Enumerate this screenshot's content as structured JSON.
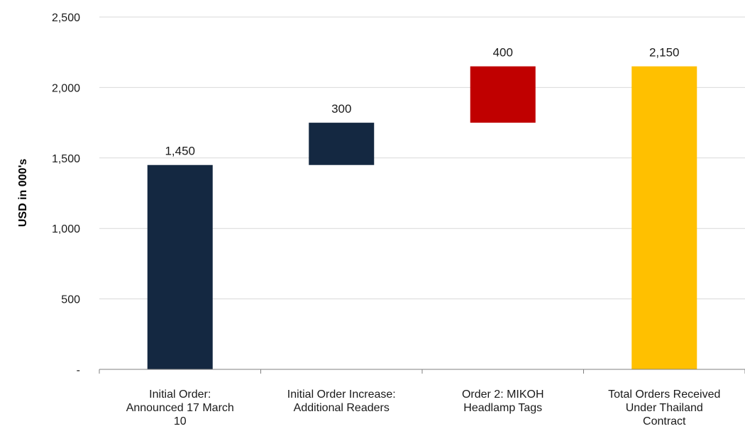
{
  "chart_data": {
    "type": "bar",
    "subtype": "waterfall",
    "ylabel": "USD in 000's",
    "ylim": [
      0,
      2500
    ],
    "yticks": [
      {
        "value": 0,
        "label": "-"
      },
      {
        "value": 500,
        "label": "500"
      },
      {
        "value": 1000,
        "label": "1,000"
      },
      {
        "value": 1500,
        "label": "1,500"
      },
      {
        "value": 2000,
        "label": "2,000"
      },
      {
        "value": 2500,
        "label": "2,500"
      }
    ],
    "grid": true,
    "bars": [
      {
        "category_lines": [
          "Initial Order:",
          "Announced 17 March",
          "10"
        ],
        "base": 0,
        "value": 1450,
        "label": "1,450",
        "color": "#142841"
      },
      {
        "category_lines": [
          "Initial Order Increase:",
          "Additional Readers"
        ],
        "base": 1450,
        "value": 300,
        "label": "300",
        "color": "#142841"
      },
      {
        "category_lines": [
          "Order 2: MIKOH",
          "Headlamp Tags"
        ],
        "base": 1750,
        "value": 400,
        "label": "400",
        "color": "#c00000"
      },
      {
        "category_lines": [
          "Total Orders Received",
          "Under Thailand",
          "Contract"
        ],
        "base": 0,
        "value": 2150,
        "label": "2,150",
        "color": "#ffc000"
      }
    ]
  }
}
